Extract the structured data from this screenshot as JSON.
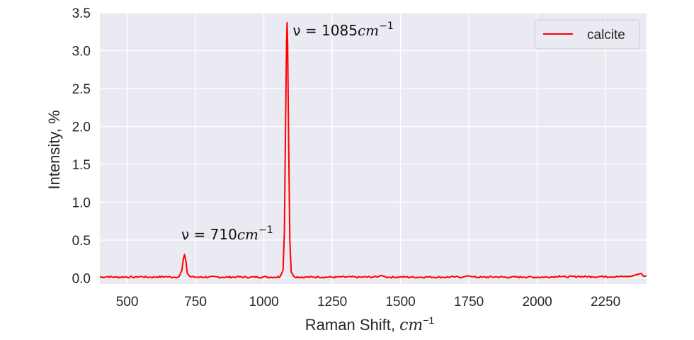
{
  "chart_data": {
    "type": "line",
    "xlabel": "Raman Shift, cm⁻¹",
    "xlabel_parts": {
      "text": "Raman Shift, ",
      "math": "cm",
      "sup": "−1"
    },
    "ylabel": "Intensity, %",
    "xlim": [
      400,
      2400
    ],
    "ylim": [
      -0.08,
      3.5
    ],
    "xticks": [
      500,
      750,
      1000,
      1250,
      1500,
      1750,
      2000,
      2250
    ],
    "yticks": [
      "0.0",
      "0.5",
      "1.0",
      "1.5",
      "2.0",
      "2.5",
      "3.0",
      "3.5"
    ],
    "grid": true,
    "background": "#eaeaf2",
    "legend": {
      "position": "top-right",
      "entries": [
        {
          "label": "calcite",
          "color": "#ff0000"
        }
      ]
    },
    "series": [
      {
        "name": "calcite",
        "color": "#ff0000",
        "baseline": 0.01,
        "x": [
          400,
          430,
          460,
          490,
          520,
          550,
          580,
          610,
          640,
          670,
          690,
          700,
          705,
          710,
          715,
          720,
          730,
          760,
          800,
          850,
          900,
          950,
          1000,
          1040,
          1060,
          1070,
          1075,
          1080,
          1083,
          1085,
          1087,
          1090,
          1095,
          1100,
          1110,
          1150,
          1200,
          1250,
          1300,
          1350,
          1400,
          1420,
          1430,
          1440,
          1460,
          1500,
          1550,
          1600,
          1650,
          1700,
          1730,
          1748,
          1760,
          1800,
          1850,
          1900,
          1950,
          2000,
          2050,
          2080,
          2100,
          2150,
          2200,
          2250,
          2300,
          2350,
          2380,
          2390,
          2400
        ],
        "y": [
          0.01,
          0.02,
          0.01,
          0.015,
          0.01,
          0.02,
          0.01,
          0.015,
          0.02,
          0.01,
          0.02,
          0.1,
          0.24,
          0.31,
          0.22,
          0.06,
          0.015,
          0.01,
          0.015,
          0.01,
          0.015,
          0.01,
          0.015,
          0.01,
          0.02,
          0.1,
          0.6,
          2.2,
          3.1,
          3.37,
          3.1,
          2.0,
          0.5,
          0.08,
          0.02,
          0.01,
          0.015,
          0.01,
          0.015,
          0.01,
          0.015,
          0.02,
          0.035,
          0.02,
          0.01,
          0.015,
          0.01,
          0.015,
          0.01,
          0.015,
          0.015,
          0.03,
          0.015,
          0.01,
          0.015,
          0.01,
          0.015,
          0.01,
          0.015,
          0.03,
          0.015,
          0.025,
          0.02,
          0.025,
          0.02,
          0.03,
          0.06,
          0.02,
          0.03
        ]
      }
    ],
    "annotations": [
      {
        "x": 710,
        "y": 0.31,
        "text": "ν = 710cm⁻¹",
        "parts": {
          "pre": "ν = 710",
          "math": "cm",
          "sup": "−1"
        }
      },
      {
        "x": 1085,
        "y": 3.37,
        "text": "ν = 1085cm⁻¹",
        "parts": {
          "pre": "ν = 1085",
          "math": "cm",
          "sup": "−1"
        }
      }
    ]
  }
}
